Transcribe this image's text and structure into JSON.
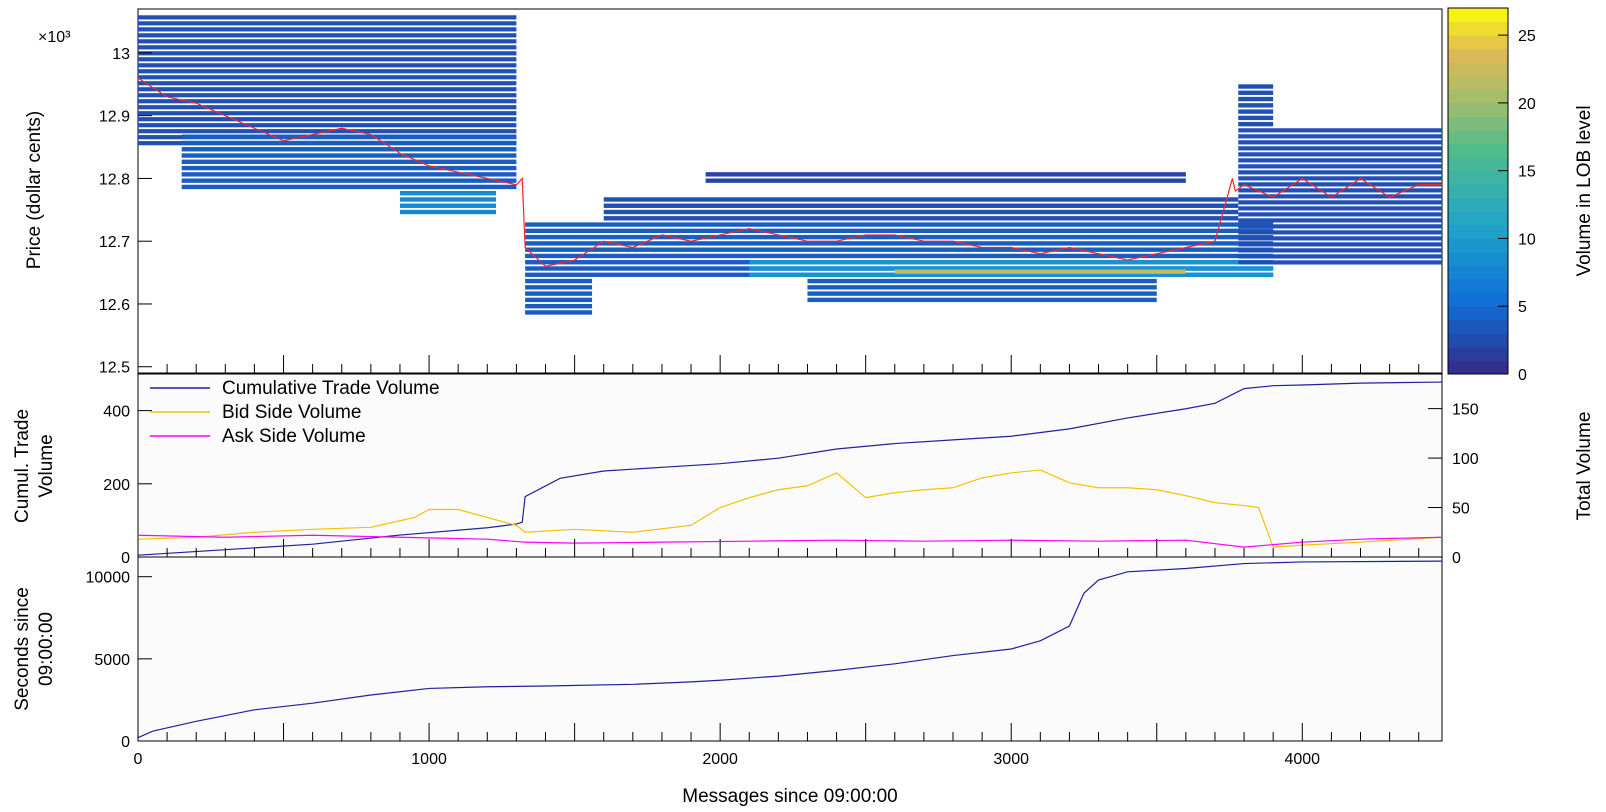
{
  "figure": {
    "xlabel": "Messages since 09:00:00",
    "x_range": [
      0,
      4480
    ],
    "x_ticks": [
      0,
      1000,
      2000,
      3000,
      4000
    ]
  },
  "colors": {
    "cumulative": "#1f1fa0",
    "bid": "#f2c200",
    "ask": "#ff00ff",
    "mid_price": "#ff2222",
    "panel_bg": "#fbfbfb"
  },
  "panels": {
    "price": {
      "ylabel": "Price (dollar cents)",
      "exponent_label": "×10³",
      "zlabel": "Volume in LOB level"
    },
    "volume": {
      "ylabel_line1": "Cumul. Trade",
      "ylabel_line2": "Volume",
      "y2label": "Total Volume",
      "legend": [
        "Cumulative Trade Volume",
        "Bid Side Volume",
        "Ask Side Volume"
      ]
    },
    "time": {
      "ylabel_line1": "Seconds since",
      "ylabel_line2": "09:00:00"
    }
  },
  "chart_data": [
    {
      "type": "heatmap",
      "title": "",
      "xlabel": "",
      "ylabel": "Price (dollar cents)",
      "y_exponent": "×10³",
      "xlim": [
        0,
        4480
      ],
      "ylim": [
        12.49,
        13.07
      ],
      "y_ticks": [
        12.5,
        12.6,
        12.7,
        12.8,
        12.9,
        13
      ],
      "colorbar": {
        "label": "Volume in LOB level",
        "range": [
          0,
          27
        ],
        "ticks": [
          0,
          5,
          10,
          15,
          20,
          25
        ]
      },
      "mid_price_line": {
        "name": "mid price",
        "x": [
          0,
          100,
          200,
          300,
          400,
          500,
          600,
          700,
          800,
          900,
          1000,
          1100,
          1200,
          1300,
          1320,
          1330,
          1400,
          1500,
          1600,
          1700,
          1800,
          1900,
          2000,
          2100,
          2200,
          2300,
          2400,
          2500,
          2600,
          2700,
          2800,
          2900,
          3000,
          3100,
          3200,
          3300,
          3400,
          3500,
          3600,
          3700,
          3760,
          3770,
          3800,
          3900,
          4000,
          4100,
          4200,
          4300,
          4400,
          4480
        ],
        "y": [
          12.96,
          12.93,
          12.92,
          12.9,
          12.88,
          12.86,
          12.87,
          12.88,
          12.87,
          12.84,
          12.82,
          12.81,
          12.8,
          12.79,
          12.8,
          12.69,
          12.66,
          12.67,
          12.7,
          12.69,
          12.71,
          12.7,
          12.71,
          12.72,
          12.71,
          12.7,
          12.7,
          12.71,
          12.71,
          12.7,
          12.7,
          12.69,
          12.69,
          12.68,
          12.69,
          12.68,
          12.67,
          12.68,
          12.69,
          12.7,
          12.8,
          12.78,
          12.79,
          12.77,
          12.8,
          12.77,
          12.8,
          12.77,
          12.79,
          12.79
        ]
      },
      "bands": [
        {
          "x0": 0,
          "x1": 1300,
          "y0": 12.85,
          "y1": 13.06,
          "v": 3
        },
        {
          "x0": 150,
          "x1": 1300,
          "y0": 12.78,
          "y1": 12.87,
          "v": 4
        },
        {
          "x0": 900,
          "x1": 1230,
          "y0": 12.74,
          "y1": 12.78,
          "v": 8
        },
        {
          "x0": 1330,
          "x1": 1560,
          "y0": 12.58,
          "y1": 12.64,
          "v": 4
        },
        {
          "x0": 1330,
          "x1": 3900,
          "y0": 12.64,
          "y1": 12.73,
          "v": 4
        },
        {
          "x0": 1600,
          "x1": 3780,
          "y0": 12.73,
          "y1": 12.77,
          "v": 3
        },
        {
          "x0": 2100,
          "x1": 3900,
          "y0": 12.64,
          "y1": 12.67,
          "v": 9
        },
        {
          "x0": 2600,
          "x1": 3600,
          "y0": 12.645,
          "y1": 12.655,
          "v": 22
        },
        {
          "x0": 2300,
          "x1": 3500,
          "y0": 12.6,
          "y1": 12.64,
          "v": 4
        },
        {
          "x0": 1950,
          "x1": 3600,
          "y0": 12.79,
          "y1": 12.81,
          "v": 2
        },
        {
          "x0": 3780,
          "x1": 4480,
          "y0": 12.66,
          "y1": 12.88,
          "v": 3
        },
        {
          "x0": 3780,
          "x1": 3900,
          "y0": 12.88,
          "y1": 12.95,
          "v": 3
        }
      ]
    },
    {
      "type": "line",
      "title": "",
      "ylabel": "Cumul. Trade Volume",
      "y2label": "Total Volume",
      "xlim": [
        0,
        4480
      ],
      "ylim": [
        0,
        500
      ],
      "y_ticks": [
        0,
        200,
        400
      ],
      "y2lim": [
        0,
        185
      ],
      "y2_ticks": [
        0,
        50,
        100,
        150
      ],
      "legend": "top-left",
      "series": [
        {
          "name": "Cumulative Trade Volume",
          "axis": "left",
          "x": [
            0,
            300,
            600,
            900,
            1200,
            1300,
            1320,
            1330,
            1450,
            1600,
            1800,
            2000,
            2200,
            2400,
            2600,
            2800,
            3000,
            3200,
            3400,
            3600,
            3700,
            3800,
            3900,
            4000,
            4200,
            4480
          ],
          "y": [
            5,
            20,
            35,
            60,
            80,
            90,
            95,
            165,
            215,
            235,
            245,
            255,
            270,
            295,
            310,
            320,
            330,
            350,
            380,
            405,
            420,
            460,
            468,
            470,
            475,
            478
          ]
        },
        {
          "name": "Bid Side Volume",
          "axis": "right",
          "x": [
            0,
            200,
            400,
            600,
            800,
            950,
            1000,
            1100,
            1200,
            1300,
            1330,
            1500,
            1700,
            1900,
            2000,
            2100,
            2200,
            2300,
            2400,
            2500,
            2600,
            2700,
            2800,
            2900,
            3000,
            3100,
            3200,
            3300,
            3400,
            3500,
            3600,
            3700,
            3800,
            3850,
            3900,
            4000,
            4200,
            4480
          ],
          "y": [
            18,
            20,
            25,
            28,
            30,
            40,
            48,
            48,
            40,
            32,
            25,
            28,
            25,
            32,
            50,
            60,
            68,
            72,
            85,
            60,
            65,
            68,
            70,
            80,
            85,
            88,
            75,
            70,
            70,
            68,
            62,
            55,
            52,
            50,
            10,
            12,
            15,
            20
          ]
        },
        {
          "name": "Ask Side Volume",
          "axis": "right",
          "x": [
            0,
            300,
            600,
            900,
            1200,
            1330,
            1500,
            1800,
            2100,
            2400,
            2700,
            3000,
            3300,
            3600,
            3800,
            4000,
            4200,
            4480
          ],
          "y": [
            22,
            20,
            22,
            20,
            18,
            15,
            14,
            15,
            16,
            17,
            16,
            17,
            16,
            17,
            10,
            15,
            18,
            20
          ]
        }
      ]
    },
    {
      "type": "line",
      "title": "",
      "ylabel": "Seconds since 09:00:00",
      "xlabel": "Messages since 09:00:00",
      "xlim": [
        0,
        4480
      ],
      "ylim": [
        0,
        11200
      ],
      "y_ticks": [
        0,
        5000,
        10000
      ],
      "series": [
        {
          "name": "",
          "x": [
            0,
            50,
            200,
            400,
            600,
            800,
            1000,
            1200,
            1400,
            1700,
            1900,
            2000,
            2200,
            2400,
            2600,
            2800,
            3000,
            3100,
            3200,
            3250,
            3300,
            3400,
            3600,
            3800,
            4000,
            4480
          ],
          "y": [
            200,
            600,
            1200,
            1900,
            2300,
            2800,
            3200,
            3300,
            3350,
            3450,
            3600,
            3700,
            3950,
            4300,
            4700,
            5200,
            5600,
            6100,
            7000,
            9000,
            9800,
            10300,
            10500,
            10800,
            10900,
            10950
          ]
        }
      ]
    }
  ]
}
